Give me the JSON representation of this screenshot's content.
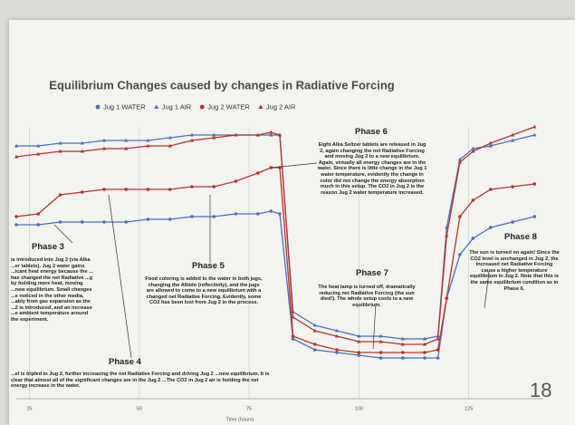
{
  "chart_data": {
    "type": "line",
    "title": "Equilibrium Changes caused by changes in Radiative Forcing",
    "xlabel": "Time (hours)",
    "x": [
      22,
      27,
      32,
      37,
      42,
      47,
      52,
      57,
      62,
      67,
      72,
      77,
      80,
      82,
      85,
      90,
      95,
      100,
      105,
      110,
      115,
      118,
      120,
      123,
      126,
      130,
      135,
      140
    ],
    "series": [
      {
        "name": "Jug 1 WATER",
        "color": "#4a6fc0",
        "marker": "circle",
        "values": [
          64,
          64,
          65,
          65,
          65,
          65,
          66,
          66,
          67,
          67,
          68,
          68,
          69,
          68,
          22,
          18,
          17,
          16,
          15,
          15,
          15,
          15,
          37,
          53,
          59,
          63,
          65,
          67
        ]
      },
      {
        "name": "Jug 1 AIR",
        "color": "#4a6fc0",
        "marker": "triangle",
        "values": [
          93,
          93,
          94,
          94,
          95,
          95,
          95,
          96,
          97,
          97,
          97,
          97,
          97,
          97,
          32,
          27,
          25,
          23,
          23,
          22,
          22,
          23,
          63,
          88,
          92,
          93,
          95,
          97
        ]
      },
      {
        "name": "Jug 2 WATER",
        "color": "#b8322a",
        "marker": "circle",
        "values": [
          67,
          68,
          75,
          76,
          77,
          77,
          77,
          77,
          78,
          78,
          80,
          83,
          85,
          85,
          23,
          20,
          18,
          17,
          17,
          17,
          17,
          18,
          37,
          67,
          73,
          77,
          78,
          79
        ]
      },
      {
        "name": "Jug 2 AIR",
        "color": "#b8322a",
        "marker": "triangle",
        "values": [
          89,
          90,
          91,
          91,
          92,
          92,
          93,
          93,
          95,
          96,
          97,
          97,
          98,
          97,
          30,
          25,
          23,
          21,
          21,
          20,
          20,
          22,
          60,
          87,
          91,
          94,
          97,
          100
        ]
      }
    ],
    "xlim": [
      22,
      142
    ],
    "xticks": [
      25,
      50,
      75,
      100,
      125
    ],
    "ylim": [
      0,
      100
    ],
    "grid": true,
    "legend": "top",
    "annotations": [
      {
        "title": "Phase 6",
        "text": "Eight Alka Seltzer tablets are released in Jug 2, again changing the net Radiative Forcing and moving Jug 2 to a new equilibrium. Again, virtually all energy changes are in the water. Since there is little change in the Jug 1 water temperature, evidently the change in color did not change the energy absorption much in this setup. The CO2 in Jug 2 is the reason Jug 2 water temperature increased."
      },
      {
        "title": "Phase 3",
        "text": "is introduced into Jug 2 (via Alka ...er tablets). Jug 2 water gains ...icant heat energy because the ... has changed the net Radiative ...g by holding more heat, moving ...new equilibrium. Small changes ...e noticed in the other media, ...ably from gas expansion as the ...2 is introduced, and an increase ...e ambient temperature around the experiment."
      },
      {
        "title": "Phase 5",
        "text": "Food coloring is added to the water in both jugs, changing the Albido (reflectivity), and the jugs are allowed to come to a new equilibrium with a changed net Radiative Forcing. Evidently, some CO2 has been lost from Jug 2 in the process."
      },
      {
        "title": "Phase 7",
        "text": "The heat lamp is turned off, dramatically reducing net Radiative Forcing (the sun died!). The whole setup cools to a new equilibrium."
      },
      {
        "title": "Phase 8",
        "text": "The sun is turned on again! Since the CO2 level is unchanged in Jug 2, the increased net Radiative Forcing cause a higher temperature equilibrium in Jug 2. Note that this is the same equilibrium condition as in Phase 6."
      },
      {
        "title": "Phase 4",
        "text": "...el is tripled in Jug 2, further increasing the net Radiative Forcing and driving Jug 2 ...new equilibrium. It is clear that almost all of the significant changes are in the Jug 2 ...The CO2 in Jug 2 air is holding the net energy increase in the water."
      }
    ]
  },
  "slide": {
    "page_number": "18"
  }
}
